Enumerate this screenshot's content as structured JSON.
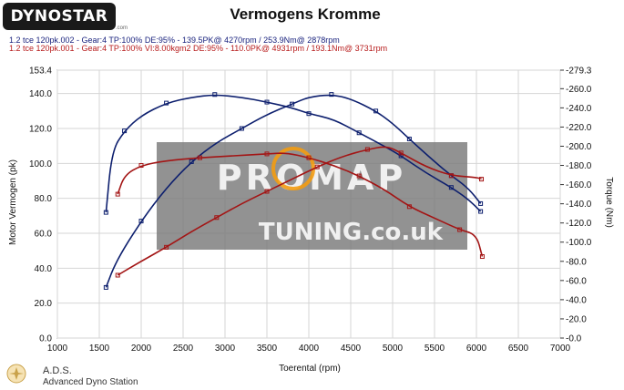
{
  "branding": {
    "logo": "DYNOSTAR",
    "logo_sub": ".com",
    "footer_line1": "A.D.S.",
    "footer_line2": "Advanced Dyno Station",
    "watermark_main": "PROMAP",
    "watermark_sub": "TUNING.co.uk"
  },
  "runs": [
    {
      "text": "1.2 tce 120pk.002 - Gear:4 TP:100% DE:95%  - 139.5PK@ 4270rpm / 253.9Nm@ 2878rpm",
      "color": "#1a237e"
    },
    {
      "text": "1.2 tce 120pk.001 - Gear:4 TP:100% VI:8.00kgm2 DE:95%  - 110.0PK@ 4931rpm / 193.1Nm@ 3731rpm",
      "color": "#b71c1c"
    }
  ],
  "chart_data": {
    "type": "line",
    "title": "Vermogens Kromme",
    "xlabel": "Toerental (rpm)",
    "ylabel": "Motor Vermogen (pk)",
    "y2label": "Torque (Nm)",
    "xlim": [
      1000,
      7000
    ],
    "xticks": [
      "1000",
      "1500",
      "2000",
      "2500",
      "3000",
      "3500",
      "4000",
      "4500",
      "5000",
      "5500",
      "6000",
      "6500",
      "7000"
    ],
    "ylim": [
      0,
      153.4
    ],
    "yticks": [
      "0.0",
      "20.0",
      "40.0",
      "60.0",
      "80.0",
      "100.0",
      "120.0",
      "140.0",
      "153.4"
    ],
    "y2lim": [
      0,
      279.3
    ],
    "y2ticks": [
      "0.0",
      "20.0",
      "40.0",
      "60.0",
      "80.0",
      "100.0",
      "120.0",
      "140.0",
      "160.0",
      "180.0",
      "200.0",
      "220.0",
      "240.0",
      "260.0",
      "279.3"
    ],
    "grid": true,
    "series": [
      {
        "name": "1.2 tce 120pk.002 power",
        "axis": "left",
        "color": "#0d1f6e",
        "x": [
          1580,
          1700,
          2000,
          2300,
          2600,
          2900,
          3200,
          3500,
          3800,
          4000,
          4270,
          4500,
          4800,
          5000,
          5200,
          5500,
          5700,
          5900,
          6050
        ],
        "y": [
          29,
          44,
          67,
          86,
          101,
          112,
          120,
          128,
          134,
          138,
          139.5,
          137,
          130,
          123,
          114,
          101,
          93,
          86,
          77
        ]
      },
      {
        "name": "1.2 tce 120pk.002 torque",
        "axis": "right",
        "color": "#0d1f6e",
        "x": [
          1580,
          1650,
          1800,
          2000,
          2300,
          2600,
          2878,
          3200,
          3500,
          3800,
          4000,
          4300,
          4600,
          4900,
          5100,
          5400,
          5700,
          5900,
          6050
        ],
        "y": [
          131,
          195,
          216,
          232,
          245,
          251,
          253.9,
          251,
          246,
          240,
          234,
          228,
          214,
          200,
          190,
          172,
          157,
          145,
          132
        ]
      },
      {
        "name": "1.2 tce 120pk.001 power",
        "axis": "left",
        "color": "#a31515",
        "x": [
          1720,
          2000,
          2300,
          2600,
          2900,
          3200,
          3500,
          3800,
          4100,
          4400,
          4700,
          4931,
          5100,
          5400,
          5700,
          6000,
          6060
        ],
        "y": [
          36,
          44,
          52,
          61,
          69,
          77,
          84,
          91,
          98,
          104,
          108,
          110,
          106,
          98,
          93,
          92,
          91
        ]
      },
      {
        "name": "1.2 tce 120pk.001 torque",
        "axis": "right",
        "color": "#a31515",
        "x": [
          1720,
          1800,
          2000,
          2300,
          2700,
          3100,
          3500,
          3731,
          4000,
          4300,
          4600,
          4900,
          5200,
          5500,
          5800,
          6000,
          6070
        ],
        "y": [
          150,
          170,
          180,
          185,
          188,
          190,
          192,
          193.1,
          188,
          180,
          169,
          155,
          137,
          125,
          113,
          108,
          85
        ]
      }
    ]
  }
}
